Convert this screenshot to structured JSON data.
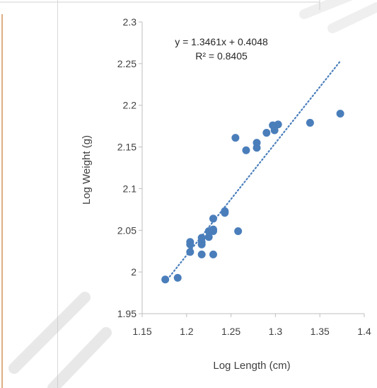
{
  "chart_data": {
    "type": "scatter",
    "title": "",
    "xlabel": "Log Length (cm)",
    "ylabel": "Log Weight (g)",
    "xlim": [
      1.15,
      1.4
    ],
    "ylim": [
      1.95,
      2.3
    ],
    "x_ticks": [
      "1.15",
      "1.2",
      "1.25",
      "1.3",
      "1.35",
      "1.4"
    ],
    "y_ticks": [
      "1.95",
      "2",
      "2.05",
      "2.1",
      "2.15",
      "2.2",
      "2.25",
      "2.3"
    ],
    "grid": false,
    "legend": "none",
    "series": [
      {
        "color": "#4a7ebb",
        "points": [
          {
            "x": 1.176,
            "y": 1.991
          },
          {
            "x": 1.19,
            "y": 1.993
          },
          {
            "x": 1.204,
            "y": 2.024
          },
          {
            "x": 1.204,
            "y": 2.033
          },
          {
            "x": 1.204,
            "y": 2.036
          },
          {
            "x": 1.217,
            "y": 2.021
          },
          {
            "x": 1.217,
            "y": 2.033
          },
          {
            "x": 1.217,
            "y": 2.036
          },
          {
            "x": 1.217,
            "y": 2.041
          },
          {
            "x": 1.225,
            "y": 2.042
          },
          {
            "x": 1.225,
            "y": 2.049
          },
          {
            "x": 1.23,
            "y": 2.021
          },
          {
            "x": 1.23,
            "y": 2.049
          },
          {
            "x": 1.23,
            "y": 2.051
          },
          {
            "x": 1.23,
            "y": 2.064
          },
          {
            "x": 1.243,
            "y": 2.071
          },
          {
            "x": 1.243,
            "y": 2.073
          },
          {
            "x": 1.255,
            "y": 2.161
          },
          {
            "x": 1.258,
            "y": 2.049
          },
          {
            "x": 1.267,
            "y": 2.146
          },
          {
            "x": 1.279,
            "y": 2.149
          },
          {
            "x": 1.279,
            "y": 2.155
          },
          {
            "x": 1.29,
            "y": 2.167
          },
          {
            "x": 1.297,
            "y": 2.176
          },
          {
            "x": 1.299,
            "y": 2.17
          },
          {
            "x": 1.303,
            "y": 2.177
          },
          {
            "x": 1.339,
            "y": 2.179
          },
          {
            "x": 1.373,
            "y": 2.19
          }
        ]
      }
    ],
    "trendline": {
      "style": "dotted",
      "color": "#4a7ebb",
      "slope": 1.3461,
      "intercept": 0.4048,
      "x_range": [
        1.176,
        1.373
      ],
      "equation": "y = 1.3461x + 0.4048",
      "r_squared": "R² = 0.8405"
    }
  }
}
